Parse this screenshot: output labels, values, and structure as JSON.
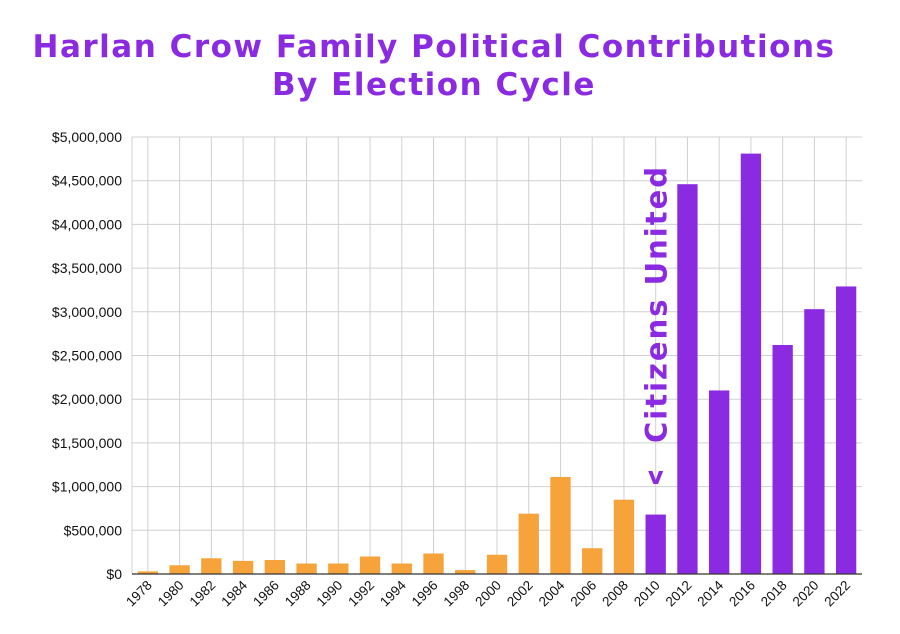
{
  "chart_data": {
    "type": "bar",
    "title_lines": [
      "Harlan Crow Family Political Contributions",
      "By Election Cycle"
    ],
    "categories": [
      "1978",
      "1980",
      "1982",
      "1984",
      "1986",
      "1988",
      "1990",
      "1992",
      "1994",
      "1996",
      "1998",
      "2000",
      "2002",
      "2004",
      "2006",
      "2008",
      "2010",
      "2012",
      "2014",
      "2016",
      "2018",
      "2020",
      "2022"
    ],
    "values": [
      30000,
      100000,
      180000,
      150000,
      160000,
      120000,
      120000,
      200000,
      120000,
      235000,
      45000,
      220000,
      690000,
      1110000,
      295000,
      850000,
      680000,
      4460000,
      2100000,
      4810000,
      2620000,
      3030000,
      3290000
    ],
    "ylim": [
      0,
      5000000
    ],
    "ytick_values": [
      0,
      500000,
      1000000,
      1500000,
      2000000,
      2500000,
      3000000,
      3500000,
      4000000,
      4500000,
      5000000
    ],
    "ytick_labels": [
      "$0",
      "$500,000",
      "$1,000,000",
      "$1,500,000",
      "$2,000,000",
      "$2,500,000",
      "$3,000,000",
      "$3,500,000",
      "$4,000,000",
      "$4,500,000",
      "$5,000,000"
    ],
    "grid": true,
    "colors": {
      "pre": "#f5a33a",
      "post": "#8a2be2",
      "grid": "#d0d0d0",
      "axis": "#333333"
    },
    "color_switch_category": "2010",
    "annotation": {
      "text": "Citizens United",
      "arrow": "v",
      "at_category": "2010"
    }
  }
}
